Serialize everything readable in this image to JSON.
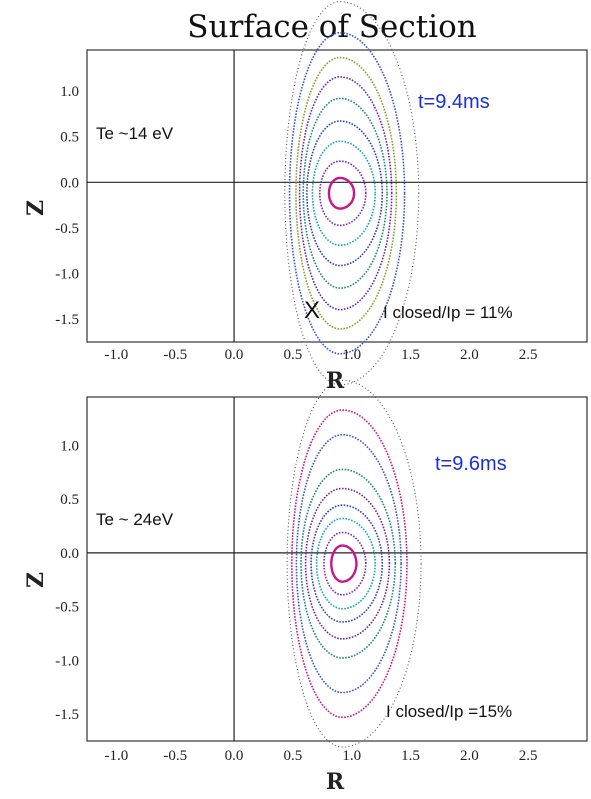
{
  "figure": {
    "title": "Surface of Section"
  },
  "chart_data": [
    {
      "type": "scatter",
      "panel": "top",
      "xlabel": "R",
      "ylabel": "Z",
      "xlim": [
        -1.25,
        3.0
      ],
      "ylim": [
        -1.75,
        1.45
      ],
      "xticks": [
        "-1.0",
        "-0.5",
        "0.0",
        "0.5",
        "1.0",
        "1.5",
        "2.0",
        "2.5"
      ],
      "yticks": [
        "1.0",
        "0.5",
        "0.0",
        "-0.5",
        "-1.0",
        "-1.5"
      ],
      "annotations": {
        "time": "t=9.4ms",
        "te": "Te ~14 eV",
        "closed": "I closed/Ip = 11%",
        "xpoint": "X"
      },
      "magnetic_axis": [
        0.9,
        -0.12
      ],
      "xpoint_location": [
        0.68,
        -1.38
      ],
      "surfaces": [
        {
          "color": "#c8158c",
          "r": 0.12,
          "k": 1.4
        },
        {
          "color": "#7a2bb5",
          "r": 0.22,
          "k": 1.6
        },
        {
          "color": "#12a6b3",
          "r": 0.3,
          "k": 1.9
        },
        {
          "color": "#2b3fc0",
          "r": 0.36,
          "k": 2.2
        },
        {
          "color": "#1c8a7a",
          "r": 0.4,
          "k": 2.6
        },
        {
          "color": "#6a28a8",
          "r": 0.44,
          "k": 2.9
        },
        {
          "color": "#8a9c2a",
          "r": 0.48,
          "k": 3.1
        },
        {
          "color": "#3d57c8",
          "r": 0.55,
          "k": 3.2
        }
      ]
    },
    {
      "type": "scatter",
      "panel": "bottom",
      "xlabel": "R",
      "ylabel": "Z",
      "xlim": [
        -1.25,
        3.0
      ],
      "ylim": [
        -1.75,
        1.45
      ],
      "xticks": [
        "-1.0",
        "-0.5",
        "0.0",
        "0.5",
        "1.0",
        "1.5",
        "2.0",
        "2.5"
      ],
      "yticks": [
        "1.0",
        "0.5",
        "0.0",
        "-0.5",
        "-1.0",
        "-1.5"
      ],
      "annotations": {
        "time": "t=9.6ms",
        "te": "Te ~ 24eV",
        "closed": "I closed/Ip =15%"
      },
      "magnetic_axis": [
        0.92,
        -0.1
      ],
      "surfaces": [
        {
          "color": "#c8158c",
          "r": 0.12,
          "k": 1.4
        },
        {
          "color": "#7a2bb5",
          "r": 0.2,
          "k": 1.45
        },
        {
          "color": "#12a6b3",
          "r": 0.28,
          "k": 1.5
        },
        {
          "color": "#2b3fc0",
          "r": 0.34,
          "k": 1.6
        },
        {
          "color": "#6a28a8",
          "r": 0.4,
          "k": 1.75
        },
        {
          "color": "#1c8a7a",
          "r": 0.45,
          "k": 1.95
        },
        {
          "color": "#3d57c8",
          "r": 0.5,
          "k": 2.4
        },
        {
          "color": "#c8158c",
          "r": 0.55,
          "k": 2.6
        }
      ]
    }
  ]
}
